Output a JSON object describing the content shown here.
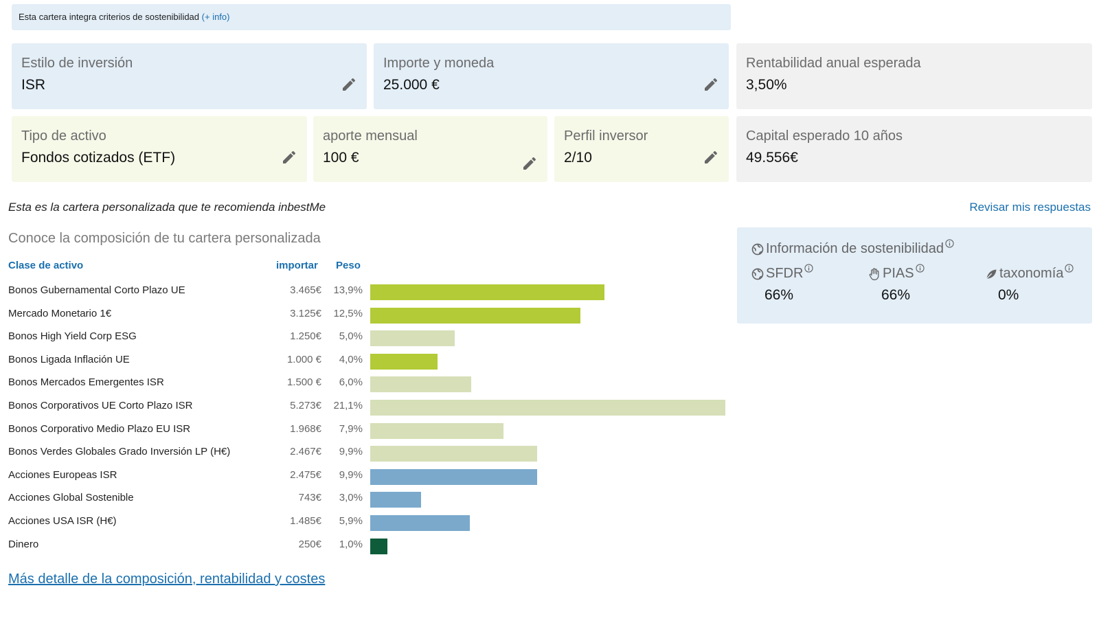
{
  "banner": {
    "text": "Esta cartera integra criterios de sostenibilidad",
    "link": "(+ info)"
  },
  "cards": {
    "style": {
      "label": "Estilo de inversión",
      "value": "ISR"
    },
    "amount": {
      "label": "Importe y moneda",
      "value": "25.000 €"
    },
    "return": {
      "label": "Rentabilidad anual esperada",
      "value": "3,50%"
    },
    "asset_type": {
      "label": "Tipo de activo",
      "value": "Fondos cotizados (ETF)"
    },
    "monthly": {
      "label": "aporte mensual",
      "value": "100 €"
    },
    "profile": {
      "label": "Perfil inversor",
      "value": "2/10"
    },
    "capital": {
      "label": "Capital esperado 10 años",
      "value": "49.556€"
    }
  },
  "intro": "Esta es la cartera personalizada que te recomienda inbestMe",
  "review_link": "Revisar mis respuestas",
  "subtitle": "Conoce la composición de tu cartera personalizada",
  "table": {
    "headers": {
      "asset": "Clase de activo",
      "amount": "importar",
      "weight": "Peso"
    }
  },
  "colors": {
    "bond_gov": "#b2cb36",
    "bond_other": "#d6dfb7",
    "equity": "#7aa9cc",
    "cash": "#0e5c3a"
  },
  "chart_data": {
    "type": "bar",
    "orientation": "horizontal",
    "categories": [
      "Bonos Gubernamental Corto Plazo UE",
      "Mercado Monetario 1€",
      "Bonos High Yield Corp ESG",
      "Bonos Ligada Inflación UE",
      "Bonos Mercados Emergentes ISR",
      "Bonos Corporativos UE Corto Plazo ISR",
      "Bonos Corporativo Medio Plazo EU ISR",
      "Bonos Verdes Globales Grado Inversión LP (H€)",
      "Acciones Europeas ISR",
      "Acciones Global Sostenible",
      "Acciones USA ISR (H€)",
      "Dinero"
    ],
    "amounts": [
      "3.465€",
      "3.125€",
      "1.250€",
      "1.000 €",
      "1.500 €",
      "5.273€",
      "1.968€",
      "2.467€",
      "2.475€",
      "743€",
      "1.485€",
      "250€"
    ],
    "weights": [
      "13,9%",
      "12,5%",
      "5,0%",
      "4,0%",
      "6,0%",
      "21,1%",
      "7,9%",
      "9,9%",
      "9,9%",
      "3,0%",
      "5,9%",
      "1,0%"
    ],
    "values": [
      13.9,
      12.5,
      5.0,
      4.0,
      6.0,
      21.1,
      7.9,
      9.9,
      9.9,
      3.0,
      5.9,
      1.0
    ],
    "color_keys": [
      "bond_gov",
      "bond_gov",
      "bond_other",
      "bond_gov",
      "bond_other",
      "bond_other",
      "bond_other",
      "bond_other",
      "equity",
      "equity",
      "equity",
      "cash"
    ],
    "xlim": [
      0,
      21.1
    ]
  },
  "more_link": "Más detalle de la composición, rentabilidad y costes",
  "sustainability": {
    "title": "Información de sostenibilidad",
    "sfdr": {
      "label": "SFDR",
      "value": "66%"
    },
    "pias": {
      "label": "PIAS",
      "value": "66%"
    },
    "taxonomy": {
      "label": "taxonomía",
      "value": "0%"
    }
  }
}
